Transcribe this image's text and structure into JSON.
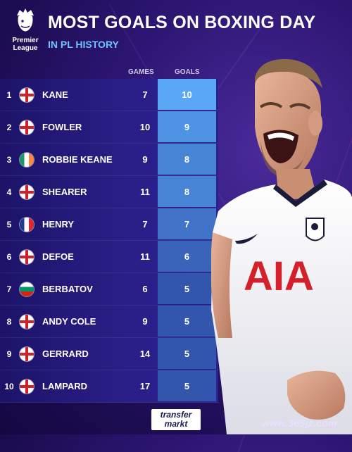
{
  "logo": {
    "line1": "Premier",
    "line2": "League"
  },
  "title": "MOST GOALS ON BOXING DAY",
  "subtitle": "IN PL HISTORY",
  "columns": {
    "games": "GAMES",
    "goals": "GOALS"
  },
  "rows": [
    {
      "rank": "1",
      "flag": "england",
      "name": "KANE",
      "games": "7",
      "goals": "10",
      "goals_color": "#5aa8f5"
    },
    {
      "rank": "2",
      "flag": "england",
      "name": "FOWLER",
      "games": "10",
      "goals": "9",
      "goals_color": "#4f94e4"
    },
    {
      "rank": "3",
      "flag": "ireland",
      "name": "ROBBIE KEANE",
      "games": "9",
      "goals": "8",
      "goals_color": "#4884d6"
    },
    {
      "rank": "4",
      "flag": "england",
      "name": "SHEARER",
      "games": "11",
      "goals": "8",
      "goals_color": "#4884d6"
    },
    {
      "rank": "5",
      "flag": "france",
      "name": "HENRY",
      "games": "7",
      "goals": "7",
      "goals_color": "#4174c8"
    },
    {
      "rank": "6",
      "flag": "england",
      "name": "DEFOE",
      "games": "11",
      "goals": "6",
      "goals_color": "#3a64ba"
    },
    {
      "rank": "7",
      "flag": "bulgaria",
      "name": "BERBATOV",
      "games": "6",
      "goals": "5",
      "goals_color": "#3356ad"
    },
    {
      "rank": "8",
      "flag": "england",
      "name": "ANDY COLE",
      "games": "9",
      "goals": "5",
      "goals_color": "#3356ad"
    },
    {
      "rank": "9",
      "flag": "england",
      "name": "GERRARD",
      "games": "14",
      "goals": "5",
      "goals_color": "#3356ad"
    },
    {
      "rank": "10",
      "flag": "england",
      "name": "LAMPARD",
      "games": "17",
      "goals": "5",
      "goals_color": "#3356ad"
    }
  ],
  "jersey_sponsor": "AIA",
  "footer_logo": {
    "line1": "transfer",
    "line2": "markt"
  },
  "watermark": "www.365jz.com",
  "colors": {
    "background": "#2b1570",
    "accent": "#6fc3ff",
    "row": "#241a7a"
  }
}
